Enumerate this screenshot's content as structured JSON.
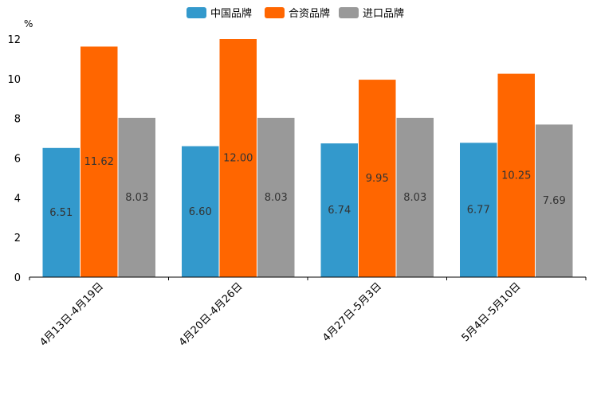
{
  "chart_data": {
    "type": "bar",
    "ylabel": "%",
    "ylim": [
      0,
      12
    ],
    "yticks": [
      0,
      2,
      4,
      6,
      8,
      10,
      12
    ],
    "grid": false,
    "legend_position": "top-center",
    "categories": [
      "4月13日-4月19日",
      "4月20日-4月26日",
      "4月27日-5月3日",
      "5月4日-5月10日"
    ],
    "series": [
      {
        "name": "中国品牌",
        "color": "#3399CC",
        "values": [
          6.51,
          6.6,
          6.74,
          6.77
        ],
        "labels": [
          "6.51",
          "6.60",
          "6.74",
          "6.77"
        ]
      },
      {
        "name": "合资品牌",
        "color": "#FF6600",
        "values": [
          11.62,
          12.0,
          9.95,
          10.25
        ],
        "labels": [
          "11.62",
          "12.00",
          "9.95",
          "10.25"
        ]
      },
      {
        "name": "进口品牌",
        "color": "#999999",
        "values": [
          8.03,
          8.03,
          8.03,
          7.69
        ],
        "labels": [
          "8.03",
          "8.03",
          "8.03",
          "7.69"
        ]
      }
    ]
  }
}
